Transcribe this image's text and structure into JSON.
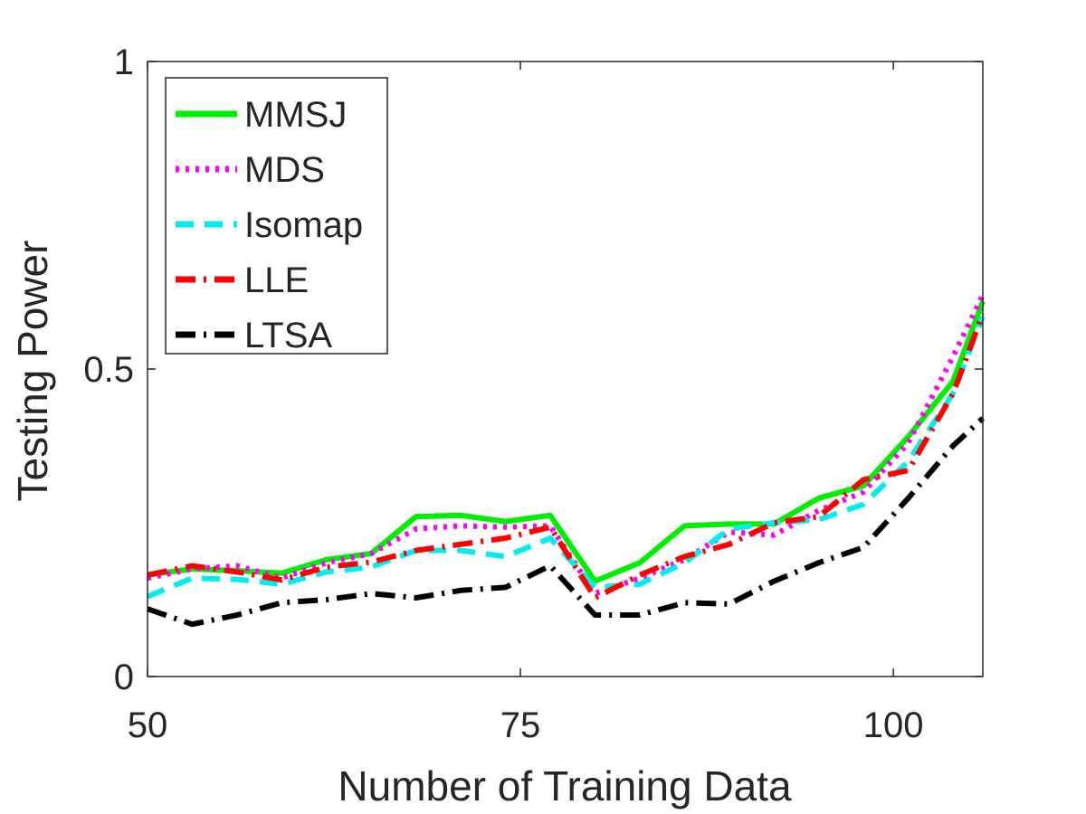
{
  "chart_data": {
    "type": "line",
    "xlabel": "Number of Training Data",
    "ylabel": "Testing Power",
    "xlim": [
      50,
      106
    ],
    "ylim": [
      0,
      1
    ],
    "xticks": [
      50,
      75,
      100
    ],
    "yticks": [
      0,
      0.5,
      1
    ],
    "xtick_labels": [
      "50",
      "75",
      "100"
    ],
    "ytick_labels": [
      "0",
      "0.5",
      "1"
    ],
    "grid": false,
    "legend_position": "top-left",
    "x": [
      50,
      53,
      56,
      59,
      62,
      65,
      68,
      71,
      74,
      77,
      80,
      83,
      86,
      89,
      92,
      95,
      98,
      101,
      104,
      106
    ],
    "series": [
      {
        "name": "MMSJ",
        "color": "#00ee00",
        "dash": "solid",
        "values": [
          0.165,
          0.175,
          0.172,
          0.168,
          0.19,
          0.2,
          0.26,
          0.262,
          0.252,
          0.262,
          0.155,
          0.185,
          0.245,
          0.248,
          0.248,
          0.29,
          0.31,
          0.39,
          0.48,
          0.61
        ]
      },
      {
        "name": "MDS",
        "color": "#ff00ff",
        "dash": "dot",
        "values": [
          0.16,
          0.175,
          0.18,
          0.16,
          0.185,
          0.2,
          0.24,
          0.245,
          0.243,
          0.245,
          0.135,
          0.16,
          0.19,
          0.235,
          0.23,
          0.27,
          0.3,
          0.38,
          0.52,
          0.62
        ]
      },
      {
        "name": "Isomap",
        "color": "#00eeee",
        "dash": "dash",
        "values": [
          0.13,
          0.16,
          0.158,
          0.15,
          0.17,
          0.178,
          0.205,
          0.205,
          0.195,
          0.225,
          0.145,
          0.15,
          0.185,
          0.24,
          0.25,
          0.255,
          0.28,
          0.35,
          0.46,
          0.585
        ]
      },
      {
        "name": "LLE",
        "color": "#ff0000",
        "dash": "dashdot",
        "values": [
          0.165,
          0.18,
          0.17,
          0.157,
          0.178,
          0.186,
          0.205,
          0.215,
          0.225,
          0.243,
          0.128,
          0.165,
          0.195,
          0.215,
          0.25,
          0.26,
          0.32,
          0.335,
          0.46,
          0.59
        ]
      },
      {
        "name": "LTSA",
        "color": "#000000",
        "dash": "dashdot",
        "values": [
          0.11,
          0.085,
          0.1,
          0.12,
          0.125,
          0.135,
          0.128,
          0.14,
          0.145,
          0.18,
          0.1,
          0.1,
          0.12,
          0.118,
          0.155,
          0.185,
          0.21,
          0.29,
          0.375,
          0.42
        ]
      }
    ]
  }
}
